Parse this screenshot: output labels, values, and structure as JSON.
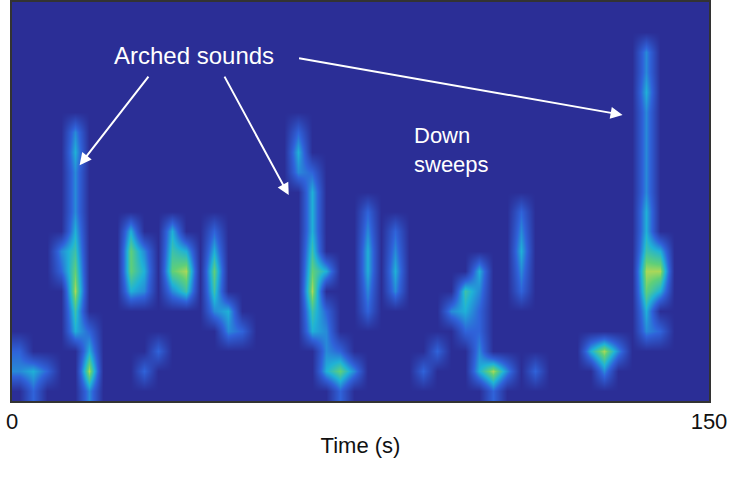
{
  "chart_data": {
    "type": "heatmap",
    "xlabel": "Time (s)",
    "xlim": [
      0,
      150
    ],
    "xticks": [
      0,
      150
    ],
    "ylim": [
      0,
      20
    ],
    "tick_labels": "x",
    "zlim": [
      0,
      9
    ],
    "annotations": [
      "Arched sounds",
      "Down sweeps"
    ],
    "cells": [
      [
        0,
        3,
        0,
        0,
        0,
        4,
        0,
        0,
        0,
        0,
        0,
        0,
        0,
        0,
        0,
        0,
        0,
        0,
        0,
        0,
        0,
        0,
        0,
        3,
        0,
        0,
        0,
        0,
        0,
        0,
        0,
        0,
        0,
        0,
        3,
        0,
        0,
        0,
        0,
        0,
        0,
        0,
        0,
        0,
        0,
        0,
        0,
        0,
        0,
        0
      ],
      [
        4,
        5,
        3,
        0,
        0,
        8,
        0,
        0,
        0,
        3,
        0,
        0,
        0,
        0,
        0,
        0,
        0,
        0,
        0,
        0,
        0,
        0,
        5,
        7,
        4,
        0,
        0,
        0,
        0,
        3,
        0,
        0,
        0,
        5,
        8,
        4,
        0,
        3,
        0,
        0,
        0,
        0,
        4,
        0,
        0,
        0,
        0,
        0,
        0,
        0
      ],
      [
        3,
        0,
        0,
        0,
        0,
        5,
        0,
        0,
        0,
        0,
        3,
        0,
        0,
        0,
        0,
        0,
        0,
        0,
        0,
        0,
        0,
        0,
        4,
        3,
        0,
        0,
        0,
        0,
        0,
        0,
        3,
        0,
        0,
        4,
        0,
        0,
        0,
        0,
        0,
        0,
        0,
        5,
        8,
        4,
        0,
        0,
        0,
        0,
        0,
        0
      ],
      [
        0,
        0,
        0,
        0,
        5,
        3,
        0,
        0,
        0,
        0,
        0,
        0,
        0,
        0,
        0,
        4,
        3,
        0,
        0,
        0,
        0,
        5,
        4,
        0,
        0,
        0,
        0,
        0,
        0,
        0,
        0,
        0,
        3,
        3,
        0,
        0,
        0,
        0,
        0,
        0,
        0,
        0,
        0,
        0,
        0,
        4,
        3,
        0,
        0,
        0
      ],
      [
        0,
        0,
        0,
        0,
        6,
        0,
        0,
        0,
        0,
        0,
        0,
        0,
        0,
        0,
        4,
        5,
        0,
        0,
        0,
        0,
        0,
        6,
        3,
        0,
        0,
        3,
        0,
        0,
        0,
        0,
        0,
        4,
        5,
        3,
        0,
        0,
        0,
        0,
        0,
        0,
        0,
        0,
        0,
        0,
        0,
        5,
        0,
        0,
        0,
        0
      ],
      [
        0,
        0,
        0,
        0,
        8,
        0,
        0,
        0,
        5,
        4,
        0,
        4,
        6,
        0,
        6,
        0,
        0,
        0,
        0,
        0,
        0,
        8,
        0,
        0,
        0,
        4,
        0,
        4,
        0,
        0,
        0,
        0,
        6,
        4,
        0,
        0,
        3,
        0,
        0,
        0,
        0,
        0,
        0,
        0,
        0,
        7,
        5,
        0,
        0,
        0
      ],
      [
        0,
        0,
        0,
        3,
        7,
        0,
        0,
        0,
        7,
        5,
        0,
        7,
        8,
        0,
        7,
        0,
        0,
        0,
        0,
        0,
        0,
        7,
        5,
        0,
        0,
        5,
        0,
        5,
        0,
        0,
        0,
        0,
        0,
        5,
        0,
        0,
        4,
        0,
        0,
        0,
        0,
        0,
        0,
        0,
        0,
        8,
        8,
        0,
        0,
        0
      ],
      [
        0,
        0,
        0,
        4,
        6,
        0,
        0,
        0,
        7,
        4,
        0,
        6,
        5,
        0,
        5,
        0,
        0,
        0,
        0,
        0,
        0,
        6,
        0,
        0,
        0,
        5,
        0,
        4,
        0,
        0,
        0,
        0,
        0,
        0,
        0,
        0,
        5,
        0,
        0,
        0,
        0,
        0,
        0,
        0,
        0,
        6,
        5,
        0,
        0,
        0
      ],
      [
        0,
        0,
        0,
        0,
        5,
        0,
        0,
        0,
        5,
        0,
        0,
        5,
        0,
        0,
        3,
        0,
        0,
        0,
        0,
        0,
        0,
        5,
        0,
        0,
        0,
        4,
        0,
        3,
        0,
        0,
        0,
        0,
        0,
        0,
        0,
        0,
        4,
        0,
        0,
        0,
        0,
        0,
        0,
        0,
        0,
        5,
        0,
        0,
        0,
        0
      ],
      [
        0,
        0,
        0,
        0,
        4,
        0,
        0,
        0,
        0,
        0,
        0,
        0,
        0,
        0,
        0,
        0,
        0,
        0,
        0,
        0,
        0,
        5,
        0,
        0,
        0,
        3,
        0,
        0,
        0,
        0,
        0,
        0,
        0,
        0,
        0,
        0,
        3,
        0,
        0,
        0,
        0,
        0,
        0,
        0,
        0,
        5,
        0,
        0,
        0,
        0
      ],
      [
        0,
        0,
        0,
        0,
        4,
        0,
        0,
        0,
        0,
        0,
        0,
        0,
        0,
        0,
        0,
        0,
        0,
        0,
        0,
        0,
        0,
        5,
        0,
        0,
        0,
        0,
        0,
        0,
        0,
        0,
        0,
        0,
        0,
        0,
        0,
        0,
        0,
        0,
        0,
        0,
        0,
        0,
        0,
        0,
        0,
        4,
        0,
        0,
        0,
        0
      ],
      [
        0,
        0,
        0,
        0,
        4,
        0,
        0,
        0,
        0,
        0,
        0,
        0,
        0,
        0,
        0,
        0,
        0,
        0,
        0,
        0,
        4,
        3,
        0,
        0,
        0,
        0,
        0,
        0,
        0,
        0,
        0,
        0,
        0,
        0,
        0,
        0,
        0,
        0,
        0,
        0,
        0,
        0,
        0,
        0,
        0,
        4,
        0,
        0,
        0,
        0
      ],
      [
        0,
        0,
        0,
        0,
        5,
        0,
        0,
        0,
        0,
        0,
        0,
        0,
        0,
        0,
        0,
        0,
        0,
        0,
        0,
        0,
        5,
        0,
        0,
        0,
        0,
        0,
        0,
        0,
        0,
        0,
        0,
        0,
        0,
        0,
        0,
        0,
        0,
        0,
        0,
        0,
        0,
        0,
        0,
        0,
        0,
        4,
        0,
        0,
        0,
        0
      ],
      [
        0,
        0,
        0,
        0,
        4,
        0,
        0,
        0,
        0,
        0,
        0,
        0,
        0,
        0,
        0,
        0,
        0,
        0,
        0,
        0,
        3,
        0,
        0,
        0,
        0,
        0,
        0,
        0,
        0,
        0,
        0,
        0,
        0,
        0,
        0,
        0,
        0,
        0,
        0,
        0,
        0,
        0,
        0,
        0,
        0,
        4,
        0,
        0,
        0,
        0
      ],
      [
        0,
        0,
        0,
        0,
        0,
        0,
        0,
        0,
        0,
        0,
        0,
        0,
        0,
        0,
        0,
        0,
        0,
        0,
        0,
        0,
        0,
        0,
        0,
        0,
        0,
        0,
        0,
        0,
        0,
        0,
        0,
        0,
        0,
        0,
        0,
        0,
        0,
        0,
        0,
        0,
        0,
        0,
        0,
        0,
        0,
        4,
        0,
        0,
        0,
        0
      ],
      [
        0,
        0,
        0,
        0,
        0,
        0,
        0,
        0,
        0,
        0,
        0,
        0,
        0,
        0,
        0,
        0,
        0,
        0,
        0,
        0,
        0,
        0,
        0,
        0,
        0,
        0,
        0,
        0,
        0,
        0,
        0,
        0,
        0,
        0,
        0,
        0,
        0,
        0,
        0,
        0,
        0,
        0,
        0,
        0,
        0,
        5,
        0,
        0,
        0,
        0
      ],
      [
        0,
        0,
        0,
        0,
        0,
        0,
        0,
        0,
        0,
        0,
        0,
        0,
        0,
        0,
        0,
        0,
        0,
        0,
        0,
        0,
        0,
        0,
        0,
        0,
        0,
        0,
        0,
        0,
        0,
        0,
        0,
        0,
        0,
        0,
        0,
        0,
        0,
        0,
        0,
        0,
        0,
        0,
        0,
        0,
        0,
        4,
        0,
        0,
        0,
        0
      ],
      [
        0,
        0,
        0,
        0,
        0,
        0,
        0,
        0,
        0,
        0,
        0,
        0,
        0,
        0,
        0,
        0,
        0,
        0,
        0,
        0,
        0,
        0,
        0,
        0,
        0,
        0,
        0,
        0,
        0,
        0,
        0,
        0,
        0,
        0,
        0,
        0,
        0,
        0,
        0,
        0,
        0,
        0,
        0,
        0,
        0,
        4,
        0,
        0,
        0,
        0
      ],
      [
        0,
        0,
        0,
        0,
        0,
        0,
        0,
        0,
        0,
        0,
        0,
        0,
        0,
        0,
        0,
        0,
        0,
        0,
        0,
        0,
        0,
        0,
        0,
        0,
        0,
        0,
        0,
        0,
        0,
        0,
        0,
        0,
        0,
        0,
        0,
        0,
        0,
        0,
        0,
        0,
        0,
        0,
        0,
        0,
        0,
        0,
        0,
        0,
        0,
        0
      ],
      [
        0,
        0,
        0,
        0,
        0,
        0,
        0,
        0,
        0,
        0,
        0,
        0,
        0,
        0,
        0,
        0,
        0,
        0,
        0,
        0,
        0,
        0,
        0,
        0,
        0,
        0,
        0,
        0,
        0,
        0,
        0,
        0,
        0,
        0,
        0,
        0,
        0,
        0,
        0,
        0,
        0,
        0,
        0,
        0,
        0,
        0,
        0,
        0,
        0,
        0
      ]
    ]
  }
}
